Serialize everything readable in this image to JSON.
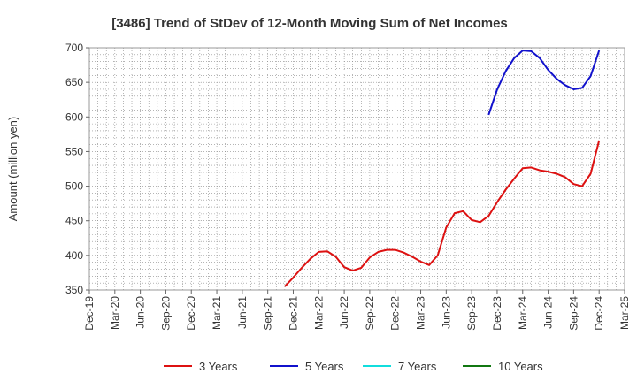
{
  "chart_data": {
    "type": "line",
    "title": "[3486]  Trend of StDev of 12-Month Moving Sum of Net Incomes",
    "ylabel": "Amount (million yen)",
    "xlabel": "",
    "ylim": [
      350,
      700
    ],
    "yticks": [
      350,
      400,
      450,
      500,
      550,
      600,
      650,
      700
    ],
    "xlim": [
      "2019-12",
      "2025-03"
    ],
    "xticks": [
      "Dec-19",
      "Mar-20",
      "Jun-20",
      "Sep-20",
      "Dec-20",
      "Mar-21",
      "Jun-21",
      "Sep-21",
      "Dec-21",
      "Mar-22",
      "Jun-22",
      "Sep-22",
      "Dec-22",
      "Mar-23",
      "Jun-23",
      "Sep-23",
      "Dec-23",
      "Mar-24",
      "Jun-24",
      "Sep-24",
      "Dec-24",
      "Mar-25"
    ],
    "grid": true,
    "legend_position": "bottom",
    "series": [
      {
        "name": "3 Years",
        "color": "#dd1111",
        "x": [
          "2021-11",
          "2021-12",
          "2022-01",
          "2022-02",
          "2022-03",
          "2022-04",
          "2022-05",
          "2022-06",
          "2022-07",
          "2022-08",
          "2022-09",
          "2022-10",
          "2022-11",
          "2022-12",
          "2023-01",
          "2023-02",
          "2023-03",
          "2023-04",
          "2023-05",
          "2023-06",
          "2023-07",
          "2023-08",
          "2023-09",
          "2023-10",
          "2023-11",
          "2023-12",
          "2024-01",
          "2024-02",
          "2024-03",
          "2024-04",
          "2024-05",
          "2024-06",
          "2024-07",
          "2024-08",
          "2024-09",
          "2024-10",
          "2024-11",
          "2024-12"
        ],
        "values": [
          355,
          368,
          382,
          395,
          405,
          406,
          398,
          383,
          378,
          382,
          397,
          405,
          408,
          408,
          404,
          398,
          391,
          386,
          400,
          440,
          461,
          464,
          451,
          448,
          457,
          477,
          495,
          511,
          526,
          527,
          523,
          521,
          518,
          513,
          503,
          500,
          518,
          566
        ]
      },
      {
        "name": "5 Years",
        "color": "#1111cc",
        "x": [
          "2023-11",
          "2023-12",
          "2024-01",
          "2024-02",
          "2024-03",
          "2024-04",
          "2024-05",
          "2024-06",
          "2024-07",
          "2024-08",
          "2024-09",
          "2024-10",
          "2024-11",
          "2024-12"
        ],
        "values": [
          603,
          640,
          666,
          685,
          696,
          695,
          685,
          668,
          655,
          646,
          640,
          642,
          659,
          696
        ]
      },
      {
        "name": "7 Years",
        "color": "#11dddd",
        "x": [],
        "values": []
      },
      {
        "name": "10 Years",
        "color": "#117711",
        "x": [],
        "values": []
      }
    ]
  }
}
